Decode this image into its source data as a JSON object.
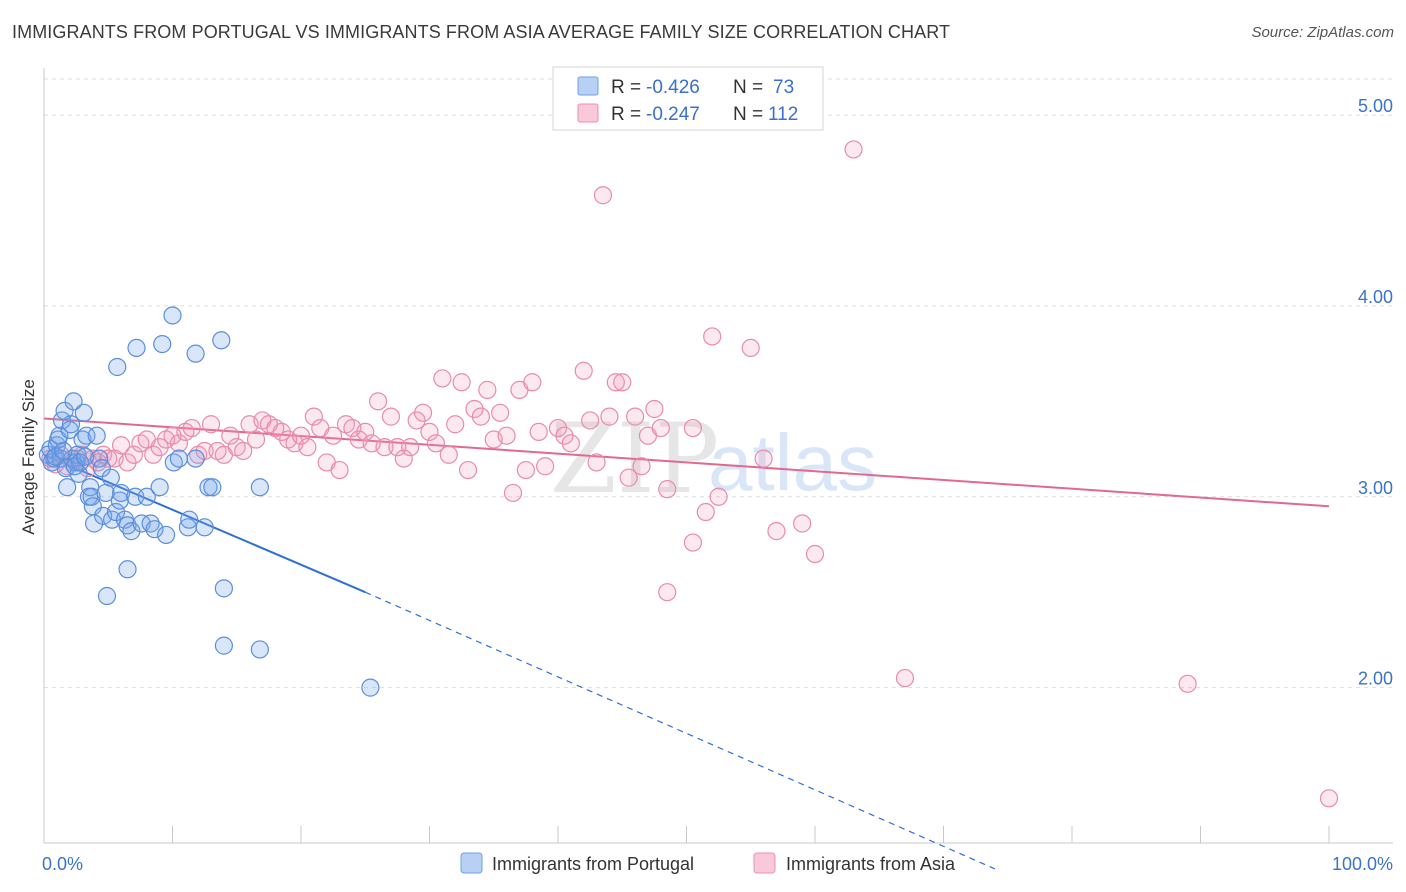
{
  "title": "IMMIGRANTS FROM PORTUGAL VS IMMIGRANTS FROM ASIA AVERAGE FAMILY SIZE CORRELATION CHART",
  "source": "Source: ZipAtlas.com",
  "watermark": {
    "zip": "ZIP",
    "atlas": "atlas"
  },
  "legend": {
    "rows": [
      {
        "r_label": "R = ",
        "r_value": "-0.426",
        "n_label": "N = ",
        "n_value": "73",
        "color": "#6f9fe6",
        "fill": "#b9d0f5"
      },
      {
        "r_label": "R = ",
        "r_value": "-0.247",
        "n_label": "N = ",
        "n_value": "112",
        "color": "#ee8fb0",
        "fill": "#f9c9d9"
      }
    ]
  },
  "colors": {
    "blue_stroke": "#5b8fdd",
    "blue_fill": "rgba(120,165,235,0.28)",
    "pink_stroke": "#e98bab",
    "pink_fill": "rgba(240,150,180,0.22)",
    "blue_line": "#2f6fd6",
    "pink_line": "#e2688f",
    "grid": "#dddddd",
    "tick_text": "#3b73c9"
  },
  "chart_data": {
    "type": "scatter",
    "title": "IMMIGRANTS FROM PORTUGAL VS IMMIGRANTS FROM ASIA AVERAGE FAMILY SIZE CORRELATION CHART",
    "xlabel": "",
    "ylabel": "Average Family Size",
    "xlim": [
      0,
      100
    ],
    "ylim": [
      1.0,
      5.15
    ],
    "x_tick_labels": [
      "0.0%",
      "100.0%"
    ],
    "y_ticks": [
      2.0,
      3.0,
      4.0,
      5.0
    ],
    "y_tick_labels": [
      "2.00",
      "3.00",
      "4.00",
      "5.00"
    ],
    "series": [
      {
        "name": "Immigrants from Portugal",
        "r": -0.426,
        "n": 73,
        "trend": {
          "x0": 0,
          "y0": 3.22,
          "x1": 25,
          "y1": 2.5,
          "dash_to_x": 74,
          "dash_to_y": 1.05
        },
        "points": [
          [
            0.3,
            3.22
          ],
          [
            0.5,
            3.25
          ],
          [
            0.6,
            3.18
          ],
          [
            0.8,
            3.2
          ],
          [
            1.0,
            3.27
          ],
          [
            1.1,
            3.3
          ],
          [
            1.2,
            3.32
          ],
          [
            1.3,
            3.2
          ],
          [
            1.4,
            3.4
          ],
          [
            1.6,
            3.45
          ],
          [
            1.7,
            3.15
          ],
          [
            1.8,
            3.05
          ],
          [
            2.0,
            3.35
          ],
          [
            2.1,
            3.38
          ],
          [
            2.2,
            3.2
          ],
          [
            2.3,
            3.5
          ],
          [
            2.5,
            3.18
          ],
          [
            2.6,
            3.22
          ],
          [
            2.7,
            3.12
          ],
          [
            2.8,
            3.18
          ],
          [
            3.0,
            3.3
          ],
          [
            3.1,
            3.44
          ],
          [
            3.3,
            3.32
          ],
          [
            3.5,
            3.0
          ],
          [
            3.6,
            3.05
          ],
          [
            3.7,
            3.0
          ],
          [
            3.8,
            2.95
          ],
          [
            3.9,
            2.86
          ],
          [
            4.1,
            3.32
          ],
          [
            4.3,
            3.2
          ],
          [
            4.5,
            3.15
          ],
          [
            4.6,
            2.9
          ],
          [
            4.8,
            3.02
          ],
          [
            4.9,
            2.48
          ],
          [
            5.2,
            3.1
          ],
          [
            5.3,
            2.88
          ],
          [
            5.6,
            2.92
          ],
          [
            5.9,
            2.98
          ],
          [
            6.0,
            3.02
          ],
          [
            6.3,
            2.88
          ],
          [
            6.5,
            2.85
          ],
          [
            6.8,
            2.82
          ],
          [
            7.1,
            3.0
          ],
          [
            7.6,
            2.86
          ],
          [
            8.0,
            3.0
          ],
          [
            8.3,
            2.86
          ],
          [
            8.6,
            2.83
          ],
          [
            9.0,
            3.05
          ],
          [
            9.5,
            2.8
          ],
          [
            10.1,
            3.18
          ],
          [
            10.5,
            3.2
          ],
          [
            11.2,
            2.84
          ],
          [
            11.3,
            2.88
          ],
          [
            11.8,
            3.2
          ],
          [
            12.5,
            2.84
          ],
          [
            12.8,
            3.05
          ],
          [
            13.1,
            3.05
          ],
          [
            14.0,
            2.52
          ],
          [
            14.0,
            2.22
          ],
          [
            16.8,
            2.2
          ],
          [
            16.8,
            3.05
          ],
          [
            6.5,
            2.62
          ],
          [
            5.7,
            3.68
          ],
          [
            7.2,
            3.78
          ],
          [
            9.2,
            3.8
          ],
          [
            10.0,
            3.95
          ],
          [
            11.8,
            3.75
          ],
          [
            13.8,
            3.82
          ],
          [
            25.4,
            2.0
          ],
          [
            0.9,
            3.21
          ],
          [
            1.5,
            3.24
          ],
          [
            2.4,
            3.16
          ],
          [
            3.2,
            3.21
          ]
        ]
      },
      {
        "name": "Immigrants from Asia",
        "r": -0.247,
        "n": 112,
        "trend": {
          "x0": 0,
          "y0": 3.41,
          "x1": 100,
          "y1": 2.95
        },
        "points": [
          [
            0.5,
            3.2
          ],
          [
            0.9,
            3.17
          ],
          [
            1.3,
            3.22
          ],
          [
            1.8,
            3.16
          ],
          [
            2.2,
            3.18
          ],
          [
            2.6,
            3.2
          ],
          [
            3.0,
            3.22
          ],
          [
            3.4,
            3.15
          ],
          [
            3.8,
            3.2
          ],
          [
            4.2,
            3.18
          ],
          [
            4.6,
            3.22
          ],
          [
            5.0,
            3.2
          ],
          [
            5.5,
            3.2
          ],
          [
            6.0,
            3.27
          ],
          [
            6.5,
            3.18
          ],
          [
            7.0,
            3.22
          ],
          [
            7.5,
            3.28
          ],
          [
            8.0,
            3.3
          ],
          [
            8.5,
            3.22
          ],
          [
            9.0,
            3.26
          ],
          [
            9.5,
            3.3
          ],
          [
            10.0,
            3.32
          ],
          [
            10.5,
            3.28
          ],
          [
            11.0,
            3.34
          ],
          [
            11.5,
            3.36
          ],
          [
            12.0,
            3.22
          ],
          [
            12.5,
            3.24
          ],
          [
            13.0,
            3.38
          ],
          [
            13.5,
            3.24
          ],
          [
            14.0,
            3.22
          ],
          [
            14.5,
            3.32
          ],
          [
            15.0,
            3.26
          ],
          [
            15.5,
            3.24
          ],
          [
            16.0,
            3.38
          ],
          [
            16.5,
            3.3
          ],
          [
            17.0,
            3.4
          ],
          [
            17.5,
            3.38
          ],
          [
            18.0,
            3.36
          ],
          [
            18.5,
            3.34
          ],
          [
            19.0,
            3.3
          ],
          [
            19.5,
            3.28
          ],
          [
            20.0,
            3.32
          ],
          [
            20.5,
            3.26
          ],
          [
            21.0,
            3.42
          ],
          [
            21.5,
            3.36
          ],
          [
            22.0,
            3.18
          ],
          [
            22.5,
            3.32
          ],
          [
            23.0,
            3.14
          ],
          [
            23.5,
            3.38
          ],
          [
            24.0,
            3.36
          ],
          [
            24.5,
            3.3
          ],
          [
            25.0,
            3.34
          ],
          [
            25.5,
            3.28
          ],
          [
            26.0,
            3.5
          ],
          [
            26.5,
            3.26
          ],
          [
            27.0,
            3.42
          ],
          [
            27.5,
            3.26
          ],
          [
            28.0,
            3.2
          ],
          [
            28.5,
            3.26
          ],
          [
            29.0,
            3.4
          ],
          [
            29.5,
            3.44
          ],
          [
            30.0,
            3.34
          ],
          [
            30.5,
            3.28
          ],
          [
            31.0,
            3.62
          ],
          [
            31.5,
            3.22
          ],
          [
            32.0,
            3.38
          ],
          [
            32.5,
            3.6
          ],
          [
            33.0,
            3.14
          ],
          [
            33.5,
            3.46
          ],
          [
            34.0,
            3.42
          ],
          [
            34.5,
            3.56
          ],
          [
            35.0,
            3.3
          ],
          [
            35.5,
            3.44
          ],
          [
            36.0,
            3.32
          ],
          [
            37.0,
            3.56
          ],
          [
            37.5,
            3.14
          ],
          [
            38.0,
            3.6
          ],
          [
            38.5,
            3.34
          ],
          [
            39.0,
            3.16
          ],
          [
            40.0,
            3.36
          ],
          [
            40.5,
            3.32
          ],
          [
            41.0,
            3.28
          ],
          [
            42.0,
            3.66
          ],
          [
            42.5,
            3.4
          ],
          [
            43.0,
            3.18
          ],
          [
            43.5,
            4.58
          ],
          [
            44.0,
            3.42
          ],
          [
            44.5,
            3.6
          ],
          [
            45.0,
            3.6
          ],
          [
            45.5,
            3.1
          ],
          [
            46.0,
            3.42
          ],
          [
            46.5,
            3.16
          ],
          [
            47.0,
            3.32
          ],
          [
            47.5,
            3.46
          ],
          [
            48.0,
            3.36
          ],
          [
            48.5,
            3.04
          ],
          [
            50.5,
            3.36
          ],
          [
            50.5,
            2.76
          ],
          [
            51.5,
            2.92
          ],
          [
            52.0,
            3.84
          ],
          [
            52.5,
            3.0
          ],
          [
            55.0,
            3.78
          ],
          [
            56.0,
            3.2
          ],
          [
            57.0,
            2.82
          ],
          [
            59.0,
            2.86
          ],
          [
            60.0,
            2.7
          ],
          [
            63.0,
            4.82
          ],
          [
            67.0,
            2.05
          ],
          [
            48.5,
            2.5
          ],
          [
            89.0,
            2.02
          ],
          [
            100.0,
            1.42
          ],
          [
            36.5,
            3.02
          ]
        ]
      }
    ]
  },
  "bottom_legend": [
    {
      "label": "Immigrants from Portugal"
    },
    {
      "label": "Immigrants from Asia"
    }
  ]
}
